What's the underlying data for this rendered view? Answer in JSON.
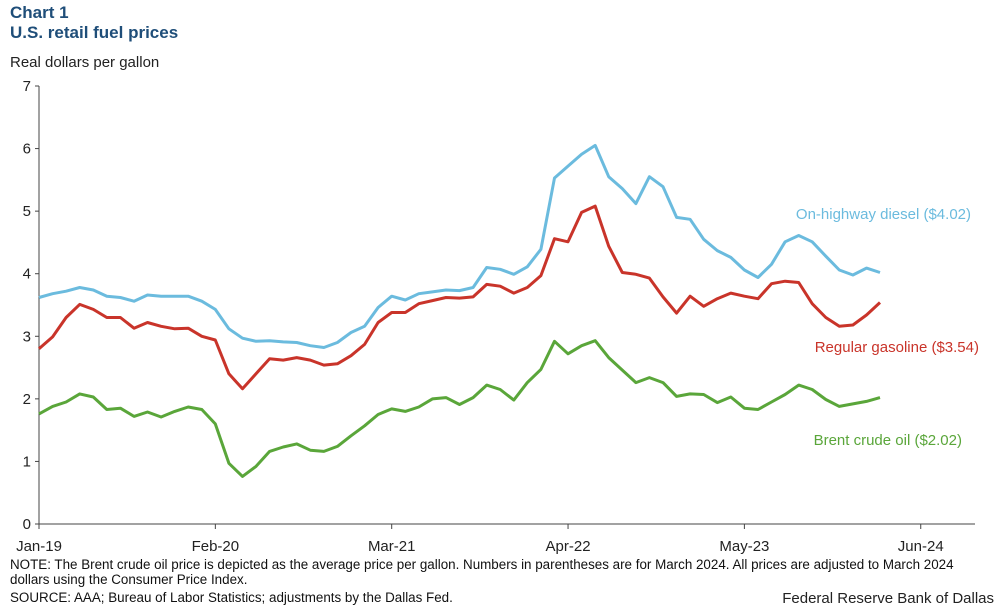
{
  "header": {
    "chart_number": "Chart 1",
    "title": "U.S. retail fuel prices",
    "ylabel": "Real dollars per gallon"
  },
  "footer": {
    "note": "NOTE: The Brent crude oil price is depicted as the average price per gallon. Numbers in parentheses are for March 2024. All prices are adjusted to March 2024 dollars using the Consumer Price Index.",
    "source": "SOURCE: AAA;  Bureau of Labor Statistics; adjustments by the Dallas Fed.",
    "credit": "Federal Reserve Bank of Dallas"
  },
  "chart_data": {
    "type": "line",
    "title": "U.S. retail fuel prices",
    "ylabel": "Real dollars per gallon",
    "ylim": [
      0,
      7
    ],
    "yticks": [
      0,
      1,
      2,
      3,
      4,
      5,
      6,
      7
    ],
    "x_start": "Jan-19",
    "x_end": "Mar-24",
    "xticks": [
      {
        "label": "Jan-19",
        "index": 0
      },
      {
        "label": "Feb-20",
        "index": 13
      },
      {
        "label": "Mar-21",
        "index": 26
      },
      {
        "label": "Apr-22",
        "index": 39
      },
      {
        "label": "May-23",
        "index": 52
      },
      {
        "label": "Jun-24",
        "index": 65
      }
    ],
    "grid": false,
    "series": [
      {
        "name": "On-highway  diesel ($4.02)",
        "color": "#6bbbde",
        "values": [
          3.62,
          3.68,
          3.72,
          3.78,
          3.74,
          3.64,
          3.62,
          3.56,
          3.66,
          3.64,
          3.64,
          3.64,
          3.56,
          3.43,
          3.12,
          2.97,
          2.92,
          2.93,
          2.91,
          2.9,
          2.85,
          2.82,
          2.9,
          3.06,
          3.16,
          3.46,
          3.64,
          3.58,
          3.68,
          3.71,
          3.74,
          3.73,
          3.78,
          4.1,
          4.07,
          3.99,
          4.11,
          4.39,
          5.53,
          5.72,
          5.91,
          6.05,
          5.55,
          5.36,
          5.12,
          5.55,
          5.39,
          4.9,
          4.87,
          4.55,
          4.37,
          4.26,
          4.06,
          3.94,
          4.15,
          4.51,
          4.61,
          4.51,
          4.28,
          4.06,
          3.98,
          4.09,
          4.02
        ]
      },
      {
        "name": "Regular gasoline ($3.54)",
        "color": "#c9342a",
        "values": [
          2.8,
          2.99,
          3.3,
          3.51,
          3.43,
          3.3,
          3.3,
          3.13,
          3.22,
          3.16,
          3.12,
          3.13,
          3.0,
          2.94,
          2.4,
          2.16,
          2.4,
          2.64,
          2.62,
          2.66,
          2.62,
          2.54,
          2.56,
          2.69,
          2.87,
          3.22,
          3.38,
          3.38,
          3.52,
          3.57,
          3.62,
          3.61,
          3.63,
          3.83,
          3.8,
          3.69,
          3.78,
          3.97,
          4.56,
          4.51,
          4.98,
          5.08,
          4.44,
          4.02,
          3.99,
          3.93,
          3.63,
          3.37,
          3.64,
          3.48,
          3.6,
          3.69,
          3.64,
          3.6,
          3.84,
          3.88,
          3.86,
          3.52,
          3.3,
          3.16,
          3.18,
          3.34,
          3.54
        ]
      },
      {
        "name": "Brent crude oil ($2.02)",
        "color": "#5aa63a",
        "values": [
          1.76,
          1.88,
          1.95,
          2.08,
          2.03,
          1.83,
          1.85,
          1.72,
          1.79,
          1.71,
          1.8,
          1.87,
          1.83,
          1.6,
          0.97,
          0.76,
          0.92,
          1.16,
          1.23,
          1.28,
          1.18,
          1.16,
          1.24,
          1.41,
          1.57,
          1.75,
          1.84,
          1.8,
          1.87,
          2.0,
          2.02,
          1.91,
          2.02,
          2.22,
          2.15,
          1.98,
          2.26,
          2.47,
          2.92,
          2.72,
          2.85,
          2.93,
          2.66,
          2.46,
          2.26,
          2.34,
          2.26,
          2.04,
          2.08,
          2.07,
          1.94,
          2.03,
          1.85,
          1.83,
          1.95,
          2.07,
          2.22,
          2.15,
          1.99,
          1.88,
          1.92,
          1.96,
          2.02
        ]
      }
    ]
  }
}
